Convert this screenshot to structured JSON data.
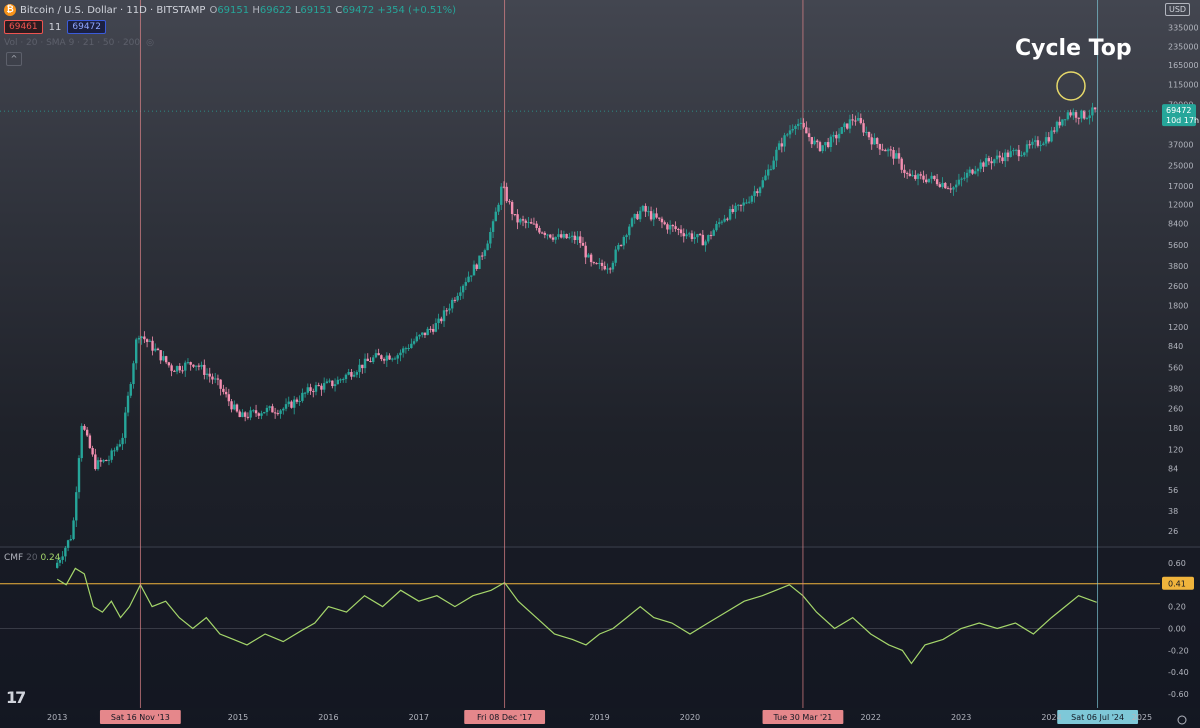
{
  "header": {
    "logo_glyph": "₿",
    "symbol": "Bitcoin / U.S. Dollar · 11D · BITSTAMP",
    "o_label": "O",
    "o_value": "69151",
    "h_label": "H",
    "h_value": "69622",
    "l_label": "L",
    "l_value": "69151",
    "c_label": "C",
    "c_value": "69472",
    "change": "+354 (+0.51%)",
    "bid": "69461",
    "spread": "11",
    "ask": "69472",
    "indicator_row": "Vol · 20 · SMA 9 · 21 · 50 · 200",
    "collapse_icon": "^"
  },
  "currency": "USD",
  "annotation": "Cycle Top",
  "tv_logo": "17",
  "colors": {
    "up": "#26a69a",
    "down": "#f48fb1",
    "cmf": "#a5d66b",
    "level": "#f0b43c",
    "marker": "#e5878b",
    "current": "#7ec8d8",
    "circle": "#e6d96a"
  },
  "chart_data": [
    {
      "type": "candlestick",
      "y_scale": "log",
      "ylim": [
        20,
        400000
      ],
      "y_ticks": [
        "335000",
        "235000",
        "165000",
        "115000",
        "79000",
        "37000",
        "25000",
        "17000",
        "12000",
        "8400",
        "5600",
        "3800",
        "2600",
        "1800",
        "1200",
        "840",
        "560",
        "380",
        "260",
        "180",
        "120",
        "84",
        "56",
        "38",
        "26"
      ],
      "x_ticks": [
        "2013",
        "2015",
        "2016",
        "2017",
        "2019",
        "2020",
        "2022",
        "2023",
        "2024",
        "2025"
      ],
      "price_path": [
        [
          2013.0,
          13
        ],
        [
          2013.2,
          25
        ],
        [
          2013.3,
          200
        ],
        [
          2013.45,
          90
        ],
        [
          2013.6,
          100
        ],
        [
          2013.75,
          150
        ],
        [
          2013.92,
          1100
        ],
        [
          2014.1,
          800
        ],
        [
          2014.3,
          550
        ],
        [
          2014.55,
          620
        ],
        [
          2014.8,
          420
        ],
        [
          2015.05,
          220
        ],
        [
          2015.3,
          250
        ],
        [
          2015.55,
          260
        ],
        [
          2015.85,
          380
        ],
        [
          2016.1,
          420
        ],
        [
          2016.35,
          560
        ],
        [
          2016.55,
          680
        ],
        [
          2016.8,
          720
        ],
        [
          2017.0,
          950
        ],
        [
          2017.25,
          1300
        ],
        [
          2017.5,
          2600
        ],
        [
          2017.7,
          4200
        ],
        [
          2017.85,
          8000
        ],
        [
          2017.95,
          17000
        ],
        [
          2018.1,
          9000
        ],
        [
          2018.3,
          8000
        ],
        [
          2018.55,
          6500
        ],
        [
          2018.8,
          6300
        ],
        [
          2018.95,
          3700
        ],
        [
          2019.15,
          3900
        ],
        [
          2019.35,
          8000
        ],
        [
          2019.5,
          11000
        ],
        [
          2019.75,
          8200
        ],
        [
          2019.95,
          7200
        ],
        [
          2020.2,
          6000
        ],
        [
          2020.4,
          9500
        ],
        [
          2020.6,
          11500
        ],
        [
          2020.85,
          19000
        ],
        [
          2021.0,
          34000
        ],
        [
          2021.2,
          58000
        ],
        [
          2021.45,
          35000
        ],
        [
          2021.6,
          40000
        ],
        [
          2021.85,
          62000
        ],
        [
          2022.05,
          40000
        ],
        [
          2022.3,
          30000
        ],
        [
          2022.45,
          20000
        ],
        [
          2022.7,
          19500
        ],
        [
          2022.95,
          16500
        ],
        [
          2023.2,
          25000
        ],
        [
          2023.5,
          30000
        ],
        [
          2023.75,
          34000
        ],
        [
          2024.0,
          43000
        ],
        [
          2024.2,
          68000
        ],
        [
          2024.4,
          64000
        ],
        [
          2024.5,
          69472
        ]
      ],
      "last_price_label": "69472",
      "countdown_label": "10d 17h"
    },
    {
      "type": "line",
      "series": [
        {
          "name": "CMF",
          "values": [
            [
              2013.0,
              0.45
            ],
            [
              2013.1,
              0.4
            ],
            [
              2013.2,
              0.55
            ],
            [
              2013.3,
              0.5
            ],
            [
              2013.4,
              0.2
            ],
            [
              2013.5,
              0.15
            ],
            [
              2013.6,
              0.25
            ],
            [
              2013.7,
              0.1
            ],
            [
              2013.8,
              0.2
            ],
            [
              2013.92,
              0.4
            ],
            [
              2014.05,
              0.2
            ],
            [
              2014.2,
              0.25
            ],
            [
              2014.35,
              0.1
            ],
            [
              2014.5,
              0.0
            ],
            [
              2014.65,
              0.1
            ],
            [
              2014.8,
              -0.05
            ],
            [
              2014.95,
              -0.1
            ],
            [
              2015.1,
              -0.15
            ],
            [
              2015.3,
              -0.05
            ],
            [
              2015.5,
              -0.12
            ],
            [
              2015.7,
              -0.02
            ],
            [
              2015.85,
              0.05
            ],
            [
              2016.0,
              0.2
            ],
            [
              2016.2,
              0.15
            ],
            [
              2016.4,
              0.3
            ],
            [
              2016.6,
              0.2
            ],
            [
              2016.8,
              0.35
            ],
            [
              2017.0,
              0.25
            ],
            [
              2017.2,
              0.3
            ],
            [
              2017.4,
              0.2
            ],
            [
              2017.6,
              0.3
            ],
            [
              2017.8,
              0.35
            ],
            [
              2017.95,
              0.42
            ],
            [
              2018.1,
              0.25
            ],
            [
              2018.3,
              0.1
            ],
            [
              2018.5,
              -0.05
            ],
            [
              2018.7,
              -0.1
            ],
            [
              2018.85,
              -0.15
            ],
            [
              2019.0,
              -0.05
            ],
            [
              2019.15,
              0.0
            ],
            [
              2019.3,
              0.1
            ],
            [
              2019.45,
              0.2
            ],
            [
              2019.6,
              0.1
            ],
            [
              2019.8,
              0.05
            ],
            [
              2020.0,
              -0.05
            ],
            [
              2020.2,
              0.05
            ],
            [
              2020.4,
              0.15
            ],
            [
              2020.6,
              0.25
            ],
            [
              2020.8,
              0.3
            ],
            [
              2020.95,
              0.35
            ],
            [
              2021.1,
              0.4
            ],
            [
              2021.25,
              0.3
            ],
            [
              2021.4,
              0.15
            ],
            [
              2021.6,
              0.0
            ],
            [
              2021.8,
              0.1
            ],
            [
              2022.0,
              -0.05
            ],
            [
              2022.2,
              -0.15
            ],
            [
              2022.35,
              -0.2
            ],
            [
              2022.45,
              -0.32
            ],
            [
              2022.6,
              -0.15
            ],
            [
              2022.8,
              -0.1
            ],
            [
              2023.0,
              0.0
            ],
            [
              2023.2,
              0.05
            ],
            [
              2023.4,
              0.0
            ],
            [
              2023.6,
              0.05
            ],
            [
              2023.8,
              -0.05
            ],
            [
              2024.0,
              0.1
            ],
            [
              2024.15,
              0.2
            ],
            [
              2024.3,
              0.3
            ],
            [
              2024.5,
              0.24
            ]
          ]
        }
      ],
      "label": "CMF",
      "period": "20",
      "current_value": "0.24",
      "level_value": "0.41",
      "level": 0.41,
      "ylim": [
        -0.7,
        0.7
      ],
      "y_ticks": [
        "0.60",
        "0.40",
        "0.20",
        "0.00",
        "-0.20",
        "-0.40",
        "-0.60"
      ]
    }
  ],
  "markers": [
    {
      "x": 2013.92,
      "label": "Sat 16 Nov '13",
      "type": "cycle"
    },
    {
      "x": 2017.95,
      "label": "Fri 08 Dec '17",
      "type": "cycle"
    },
    {
      "x": 2021.25,
      "label": "Tue 30 Mar '21",
      "type": "cycle"
    },
    {
      "x": 2024.51,
      "label": "Sat 06 Jul '24",
      "type": "current"
    }
  ]
}
